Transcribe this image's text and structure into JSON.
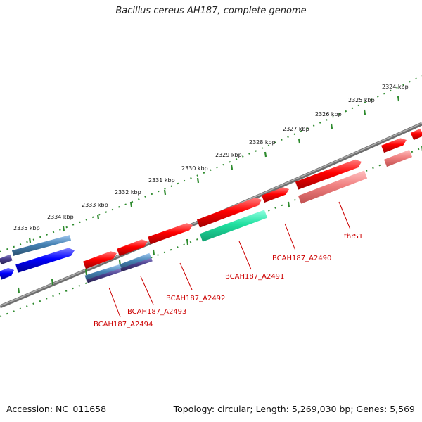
{
  "title": "Bacillus cereus AH187, complete genome",
  "footer": {
    "accession": "Accession: NC_011658",
    "summary": "Topology: circular; Length: 5,269,030 bp; Genes: 5,569"
  },
  "ruler_labels": [
    "2324 kbp",
    "2325 kbp",
    "2326 kbp",
    "2327 kbp",
    "2328 kbp",
    "2329 kbp",
    "2330 kbp",
    "2331 kbp",
    "2332 kbp",
    "2333 kbp",
    "2334 kbp",
    "2335 kbp"
  ],
  "gene_labels": [
    "thrS1",
    "BCAH187_A2490",
    "BCAH187_A2491",
    "BCAH187_A2492",
    "BCAH187_A2493",
    "BCAH187_A2494"
  ],
  "colors": {
    "backbone": "#808080",
    "ticks": "#2e8b2e",
    "gene": "#ff0000",
    "gene_light": "#f08080",
    "rna": "#20e0a0",
    "blue": "#0000ff",
    "steel": "#4682b4",
    "navy": "#483d8b",
    "label": "#cc0000"
  }
}
